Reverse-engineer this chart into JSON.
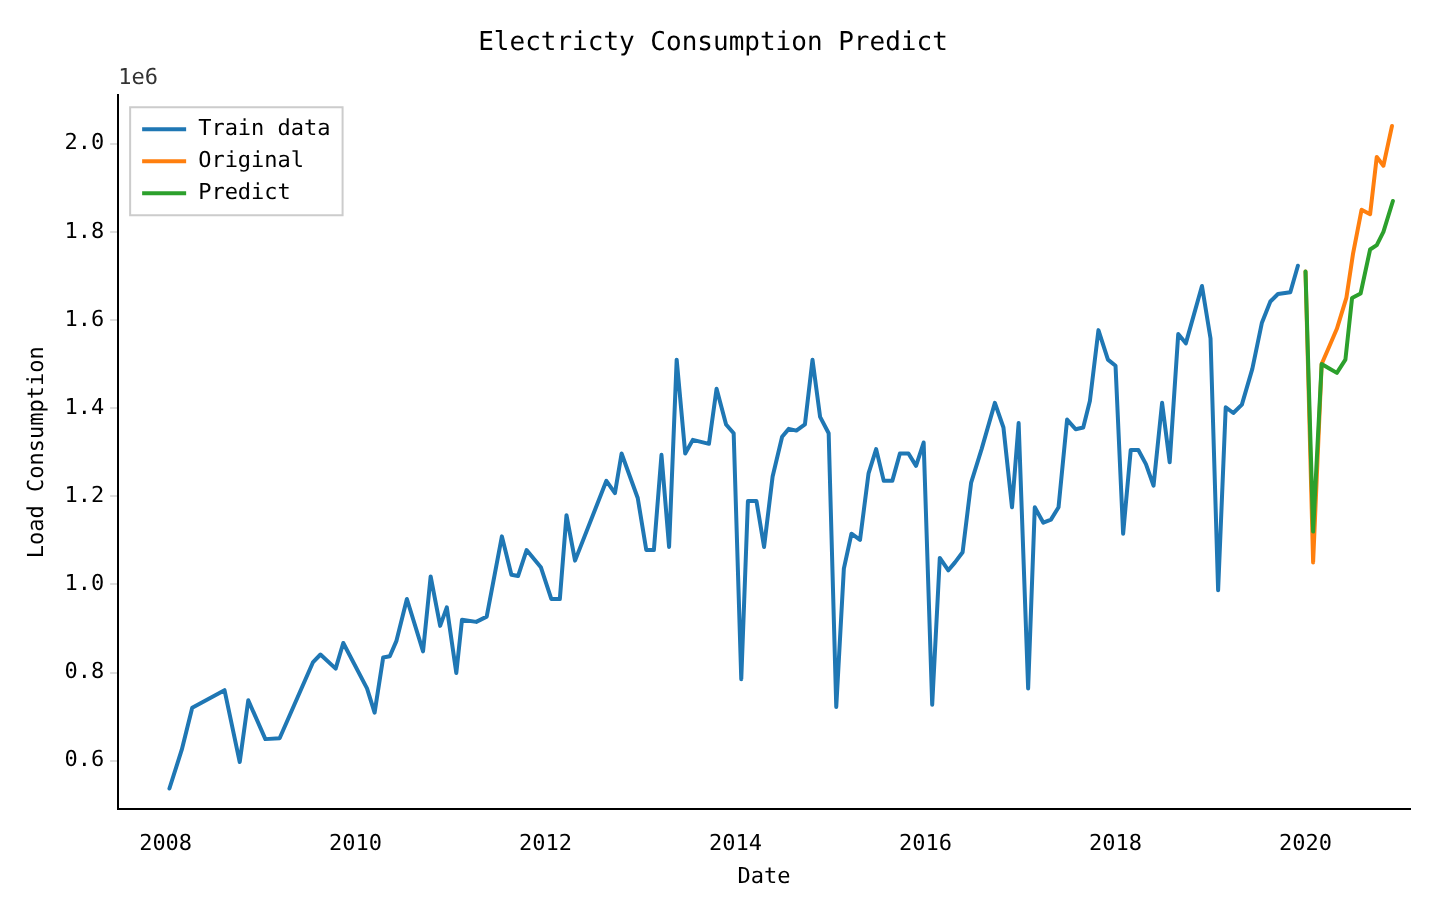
{
  "chart_data": {
    "type": "line",
    "title": "Electricty Consumption Predict",
    "xlabel": "Date",
    "ylabel": "Load Consumption",
    "annotations": [
      "1e6"
    ],
    "xlim": [
      2007.5,
      2021.1
    ],
    "xticks": [
      2008,
      2010,
      2012,
      2014,
      2016,
      2018,
      2020
    ],
    "ylim": [
      0.49,
      2.11
    ],
    "yticks": [
      {
        "value": 0.6,
        "label": "0.6"
      },
      {
        "value": 0.8,
        "label": "0.8"
      },
      {
        "value": 1.0,
        "label": "1.0"
      },
      {
        "value": 1.2,
        "label": "1.2"
      },
      {
        "value": 1.4,
        "label": "1.4"
      },
      {
        "value": 1.6,
        "label": "1.6"
      },
      {
        "value": 1.8,
        "label": "1.8"
      },
      {
        "value": 2.0,
        "label": "2.0"
      }
    ],
    "grid": false,
    "legend": "top left",
    "marker": "none",
    "line_style": "solid",
    "series": [
      {
        "name": "Train data",
        "color": "#1f77b4",
        "x": [
          2008.04,
          2008.17,
          2008.28,
          2008.62,
          2008.78,
          2008.87,
          2009.05,
          2009.2,
          2009.55,
          2009.63,
          2009.79,
          2009.87,
          2010.12,
          2010.2,
          2010.29,
          2010.36,
          2010.43,
          2010.54,
          2010.71,
          2010.79,
          2010.89,
          2010.96,
          2011.06,
          2011.12,
          2011.27,
          2011.38,
          2011.54,
          2011.64,
          2011.71,
          2011.8,
          2011.95,
          2012.06,
          2012.15,
          2012.22,
          2012.31,
          2012.64,
          2012.73,
          2012.8,
          2012.97,
          2013.06,
          2013.14,
          2013.22,
          2013.3,
          2013.38,
          2013.47,
          2013.55,
          2013.72,
          2013.8,
          2013.9,
          2013.98,
          2014.06,
          2014.13,
          2014.22,
          2014.3,
          2014.39,
          2014.49,
          2014.56,
          2014.64,
          2014.73,
          2014.81,
          2014.89,
          2014.98,
          2015.06,
          2015.14,
          2015.22,
          2015.31,
          2015.4,
          2015.48,
          2015.56,
          2015.65,
          2015.73,
          2015.82,
          2015.9,
          2015.98,
          2016.07,
          2016.15,
          2016.24,
          2016.31,
          2016.39,
          2016.48,
          2016.59,
          2016.73,
          2016.82,
          2016.91,
          2016.98,
          2017.08,
          2017.15,
          2017.24,
          2017.32,
          2017.4,
          2017.49,
          2017.58,
          2017.66,
          2017.73,
          2017.82,
          2017.92,
          2018.0,
          2018.08,
          2018.16,
          2018.24,
          2018.32,
          2018.4,
          2018.49,
          2018.57,
          2018.66,
          2018.74,
          2018.91,
          2019.0,
          2019.08,
          2019.16,
          2019.24,
          2019.33,
          2019.44,
          2019.54,
          2019.63,
          2019.71,
          2019.84,
          2019.92
        ],
        "values": [
          0.537,
          0.625,
          0.72,
          0.76,
          0.597,
          0.737,
          0.649,
          0.651,
          0.823,
          0.841,
          0.809,
          0.867,
          0.764,
          0.709,
          0.834,
          0.837,
          0.872,
          0.967,
          0.848,
          1.018,
          0.906,
          0.948,
          0.799,
          0.92,
          0.915,
          0.927,
          1.109,
          1.022,
          1.019,
          1.078,
          1.039,
          0.967,
          0.967,
          1.157,
          1.054,
          1.235,
          1.207,
          1.297,
          1.196,
          1.078,
          1.078,
          1.294,
          1.085,
          1.51,
          1.297,
          1.328,
          1.319,
          1.444,
          1.363,
          1.343,
          0.785,
          1.189,
          1.189,
          1.085,
          1.245,
          1.335,
          1.353,
          1.349,
          1.363,
          1.51,
          1.38,
          1.343,
          0.722,
          1.036,
          1.115,
          1.101,
          1.252,
          1.307,
          1.235,
          1.235,
          1.297,
          1.297,
          1.269,
          1.322,
          0.727,
          1.06,
          1.032,
          1.05,
          1.073,
          1.231,
          1.307,
          1.412,
          1.356,
          1.175,
          1.366,
          0.764,
          1.175,
          1.14,
          1.147,
          1.175,
          1.374,
          1.352,
          1.356,
          1.416,
          1.577,
          1.51,
          1.496,
          1.115,
          1.305,
          1.305,
          1.273,
          1.224,
          1.412,
          1.277,
          1.568,
          1.547,
          1.677,
          1.558,
          0.987,
          1.402,
          1.389,
          1.408,
          1.489,
          1.593,
          1.642,
          1.659,
          1.663,
          1.723
        ]
      },
      {
        "name": "Original",
        "color": "#ff7f0e",
        "x": [
          2020.0,
          2020.08,
          2020.17,
          2020.25,
          2020.33,
          2020.43,
          2020.5,
          2020.59,
          2020.68,
          2020.75,
          2020.82,
          2020.91
        ],
        "values": [
          1.71,
          1.05,
          1.5,
          1.54,
          1.58,
          1.65,
          1.75,
          1.85,
          1.84,
          1.97,
          1.95,
          2.04
        ]
      },
      {
        "name": "Predict",
        "color": "#2ca02c",
        "x": [
          2020.0,
          2020.08,
          2020.17,
          2020.25,
          2020.33,
          2020.42,
          2020.49,
          2020.58,
          2020.68,
          2020.75,
          2020.82,
          2020.92
        ],
        "values": [
          1.71,
          1.12,
          1.5,
          1.49,
          1.48,
          1.51,
          1.65,
          1.66,
          1.76,
          1.77,
          1.8,
          1.87
        ]
      }
    ]
  }
}
